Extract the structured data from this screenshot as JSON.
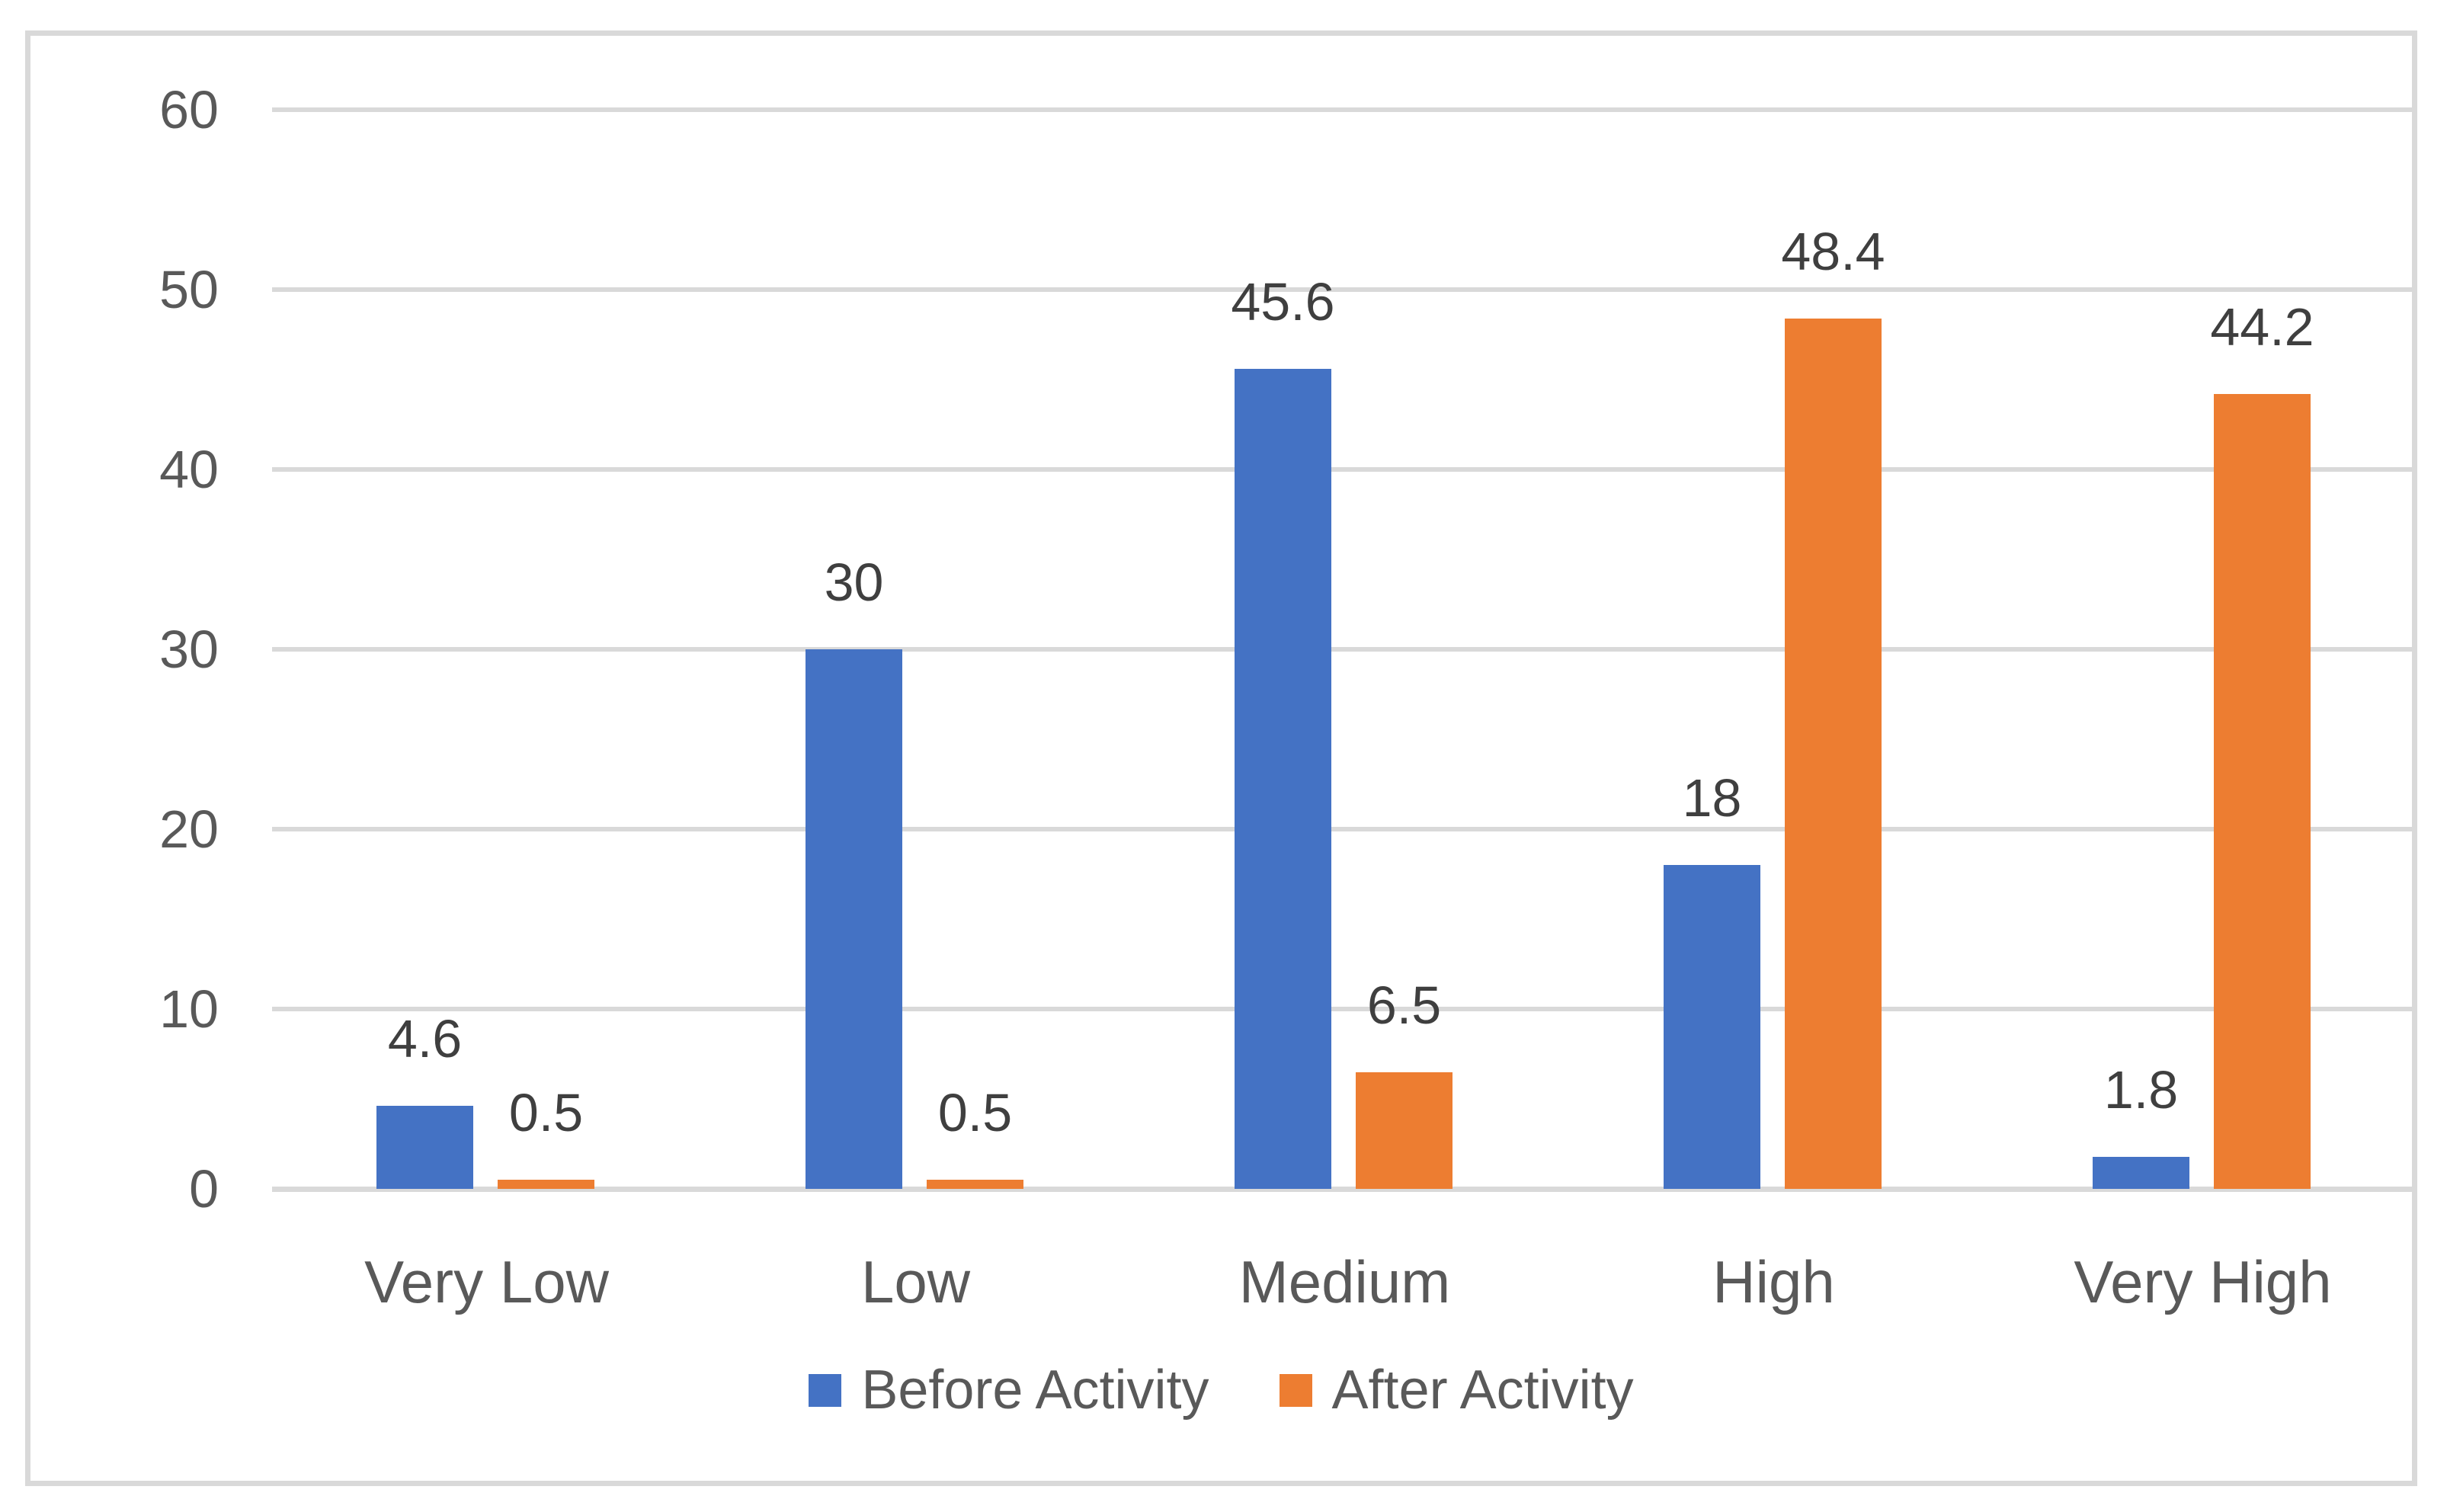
{
  "chart_data": {
    "type": "bar",
    "categories": [
      "Very Low",
      "Low",
      "Medium",
      "High",
      "Very High"
    ],
    "series": [
      {
        "name": "Before Activity",
        "color": "#4472C4",
        "values": [
          4.6,
          30,
          45.6,
          18,
          1.8
        ]
      },
      {
        "name": "After Activity",
        "color": "#ED7D31",
        "values": [
          0.5,
          0.5,
          6.5,
          48.4,
          44.2
        ]
      }
    ],
    "data_labels": {
      "Before Activity": [
        "4.6",
        "30",
        "45.6",
        "18",
        "1.8"
      ],
      "After Activity": [
        "0.5",
        "0.5",
        "6.5",
        "48.4",
        "44.2"
      ]
    },
    "title": "",
    "xlabel": "",
    "ylabel": "",
    "ylim": [
      0,
      60
    ],
    "y_ticks": [
      0,
      10,
      20,
      30,
      40,
      50,
      60
    ],
    "grid": "horizontal",
    "legend_position": "bottom"
  },
  "colors": {
    "background": "#FFFFFF",
    "frame_border": "#D9D9D9",
    "gridline": "#D9D9D9",
    "axis_line": "#D9D9D9",
    "tick_text": "#595959",
    "category_text": "#595959",
    "legend_text": "#595959",
    "data_label_text": "#3F3F3F",
    "series_before": "#4472C4",
    "series_after": "#ED7D31"
  }
}
